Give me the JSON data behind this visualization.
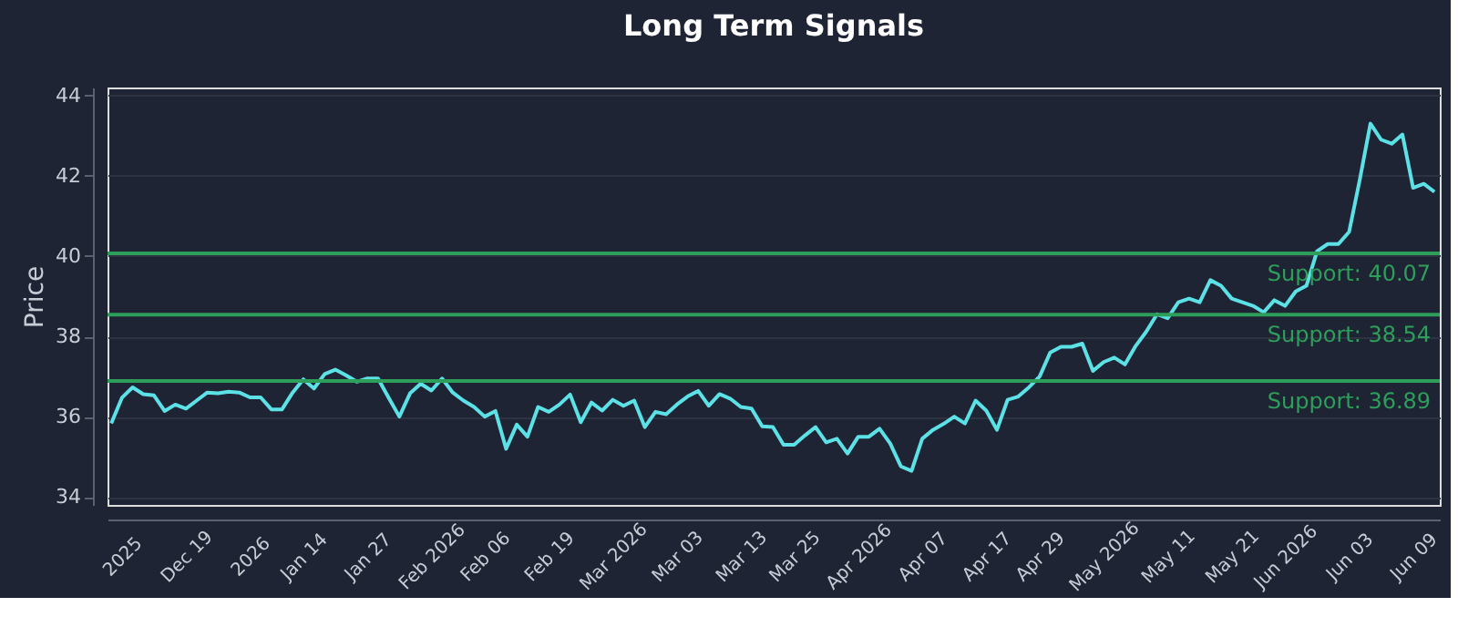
{
  "chart_data": {
    "type": "line",
    "title": "Long Term Signals",
    "ylabel": "Price",
    "categories": [
      null,
      "2025",
      null,
      null,
      null,
      null,
      null,
      "Dec 19",
      null,
      null,
      null,
      null,
      null,
      "2026",
      null,
      null,
      null,
      null,
      "Jan 14",
      null,
      null,
      null,
      null,
      null,
      "Jan 27",
      null,
      null,
      null,
      null,
      null,
      "Feb 2026",
      null,
      null,
      null,
      null,
      "Feb 06",
      null,
      null,
      null,
      null,
      null,
      "Feb 19",
      null,
      null,
      null,
      null,
      null,
      "Mar 2026",
      null,
      null,
      null,
      null,
      null,
      "Mar 03",
      null,
      null,
      null,
      null,
      null,
      "Mar 13",
      null,
      null,
      null,
      null,
      "Mar 25",
      null,
      null,
      null,
      null,
      null,
      "Apr 2026",
      null,
      null,
      null,
      null,
      null,
      "Apr 07",
      null,
      null,
      null,
      null,
      null,
      "Apr 17",
      null,
      null,
      null,
      null,
      "Apr 29",
      null,
      null,
      null,
      null,
      null,
      "May 2026",
      null,
      null,
      null,
      null,
      null,
      "May 11",
      null,
      null,
      null,
      null,
      null,
      "May 21",
      null,
      null,
      null,
      null,
      "Jun 2026",
      null,
      null,
      null,
      null,
      null,
      "Jun 03",
      null,
      null,
      null,
      null,
      null,
      "Jun 09",
      null,
      null
    ],
    "series": [
      {
        "color": "#5ce1e6",
        "values": [
          35.83,
          36.47,
          36.73,
          36.56,
          36.53,
          36.14,
          36.3,
          36.2,
          36.4,
          36.6,
          36.58,
          36.62,
          36.6,
          36.48,
          36.48,
          36.18,
          36.18,
          36.6,
          36.93,
          36.7,
          37.06,
          37.17,
          37.03,
          36.87,
          36.95,
          36.95,
          36.47,
          36.0,
          36.58,
          36.82,
          36.65,
          36.95,
          36.6,
          36.4,
          36.24,
          36.0,
          36.14,
          35.2,
          35.8,
          35.5,
          36.24,
          36.12,
          36.3,
          36.55,
          35.86,
          36.35,
          36.15,
          36.42,
          36.27,
          36.4,
          35.74,
          36.12,
          36.06,
          36.3,
          36.5,
          36.64,
          36.27,
          36.56,
          36.45,
          36.24,
          36.2,
          35.76,
          35.74,
          35.3,
          35.3,
          35.53,
          35.74,
          35.36,
          35.45,
          35.08,
          35.5,
          35.5,
          35.7,
          35.33,
          34.76,
          34.65,
          35.45,
          35.67,
          35.82,
          36.0,
          35.83,
          36.4,
          36.15,
          35.67,
          36.42,
          36.5,
          36.73,
          37.0,
          37.6,
          37.74,
          37.74,
          37.82,
          37.14,
          37.36,
          37.47,
          37.3,
          37.76,
          38.12,
          38.55,
          38.45,
          38.85,
          38.94,
          38.85,
          39.4,
          39.26,
          38.94,
          38.85,
          38.76,
          38.6,
          38.9,
          38.76,
          39.12,
          39.26,
          40.12,
          40.3,
          40.3,
          40.6,
          41.9,
          43.3,
          42.9,
          42.8,
          43.03,
          41.7,
          41.8,
          41.6
        ]
      }
    ],
    "ylim": [
      33.8,
      44.2
    ],
    "yticks": [
      34,
      36,
      38,
      40,
      42,
      44
    ],
    "grid": "y",
    "marker": "none",
    "line_style": "solid",
    "ref_lines": [
      {
        "axis": "y",
        "value": 40.07,
        "label": "Support: 40.07",
        "color": "#2e9e5b"
      },
      {
        "axis": "y",
        "value": 38.54,
        "label": "Support: 38.54",
        "color": "#2e9e5b"
      },
      {
        "axis": "y",
        "value": 36.89,
        "label": "Support: 36.89",
        "color": "#2e9e5b"
      }
    ]
  }
}
